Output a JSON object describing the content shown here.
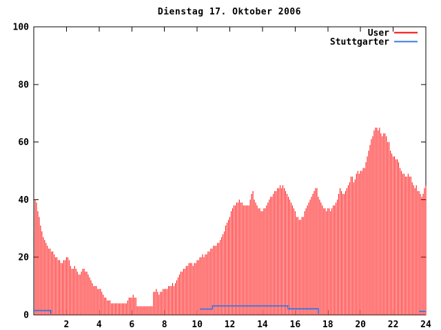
{
  "title": "Dienstag 17. Oktober 2006",
  "legend": {
    "position": "top-right-inside",
    "entries": [
      {
        "label": "User",
        "color": "#ff0000"
      },
      {
        "label": "Stuttgarter",
        "color": "#3a76e0"
      }
    ]
  },
  "axes": {
    "x_tick_labels": [
      2,
      4,
      6,
      8,
      10,
      12,
      14,
      16,
      18,
      20,
      22,
      24
    ],
    "y_tick_labels": [
      0,
      20,
      40,
      60,
      80,
      100
    ]
  },
  "chart_data": {
    "type": "bar",
    "title": "Dienstag 17. Oktober 2006",
    "xlabel": "",
    "ylabel": "",
    "xlim": [
      0,
      24
    ],
    "ylim": [
      0,
      100
    ],
    "x_ticks": [
      2,
      4,
      6,
      8,
      10,
      12,
      14,
      16,
      18,
      20,
      22,
      24
    ],
    "y_ticks": [
      0,
      20,
      40,
      60,
      80,
      100
    ],
    "grid": false,
    "legend_position": "top-right-inside",
    "series": [
      {
        "name": "User",
        "style": "impulses",
        "color": "#ff0000",
        "interval_minutes": 5,
        "values": [
          40,
          39,
          36,
          34,
          31,
          29,
          27,
          26,
          25,
          24,
          23,
          23,
          22,
          22,
          21,
          20,
          20,
          19,
          19,
          18,
          18,
          19,
          19,
          20,
          20,
          19,
          17,
          16,
          16,
          17,
          16,
          15,
          14,
          14,
          15,
          16,
          16,
          15,
          15,
          14,
          13,
          12,
          11,
          10,
          10,
          10,
          9,
          9,
          9,
          8,
          7,
          6,
          6,
          5,
          5,
          5,
          4,
          4,
          4,
          4,
          4,
          4,
          4,
          4,
          4,
          4,
          4,
          4,
          5,
          6,
          6,
          6,
          7,
          6,
          6,
          3,
          3,
          3,
          3,
          3,
          3,
          3,
          3,
          3,
          3,
          3,
          3,
          8,
          8,
          9,
          8,
          7,
          8,
          8,
          9,
          9,
          9,
          9,
          10,
          10,
          10,
          11,
          10,
          11,
          12,
          13,
          14,
          15,
          15,
          16,
          16,
          17,
          17,
          18,
          18,
          18,
          17,
          18,
          18,
          19,
          19,
          20,
          20,
          21,
          20,
          21,
          21,
          22,
          22,
          23,
          23,
          24,
          24,
          24,
          25,
          25,
          26,
          27,
          28,
          29,
          31,
          32,
          33,
          34,
          36,
          37,
          38,
          38,
          39,
          39,
          40,
          39,
          39,
          38,
          38,
          38,
          38,
          38,
          40,
          42,
          43,
          40,
          39,
          38,
          37,
          37,
          36,
          36,
          37,
          37,
          38,
          39,
          40,
          41,
          41,
          42,
          43,
          43,
          44,
          44,
          45,
          44,
          45,
          44,
          43,
          42,
          41,
          40,
          39,
          38,
          37,
          36,
          34,
          34,
          33,
          33,
          34,
          34,
          36,
          37,
          38,
          39,
          40,
          41,
          42,
          43,
          44,
          44,
          41,
          40,
          39,
          38,
          37,
          37,
          36,
          37,
          37,
          36,
          37,
          38,
          38,
          39,
          40,
          42,
          44,
          43,
          42,
          42,
          43,
          44,
          45,
          46,
          48,
          48,
          46,
          47,
          49,
          50,
          49,
          50,
          50,
          51,
          51,
          53,
          55,
          57,
          59,
          61,
          62,
          64,
          65,
          65,
          64,
          65,
          63,
          62,
          63,
          63,
          62,
          60,
          60,
          57,
          56,
          55,
          55,
          54,
          54,
          53,
          51,
          50,
          49,
          49,
          48,
          48,
          49,
          48,
          48,
          46,
          45,
          44,
          45,
          43,
          43,
          42,
          41,
          42,
          44,
          45
        ]
      },
      {
        "name": "Stuttgarter",
        "style": "step-line",
        "color": "#3a76e0",
        "segments": [
          [
            [
              0.0,
              1.5
            ],
            [
              1.04,
              1.5
            ],
            [
              1.04,
              0.4
            ]
          ],
          [
            [
              10.17,
              2.0
            ],
            [
              10.92,
              2.0
            ],
            [
              10.92,
              3.1
            ],
            [
              15.58,
              3.1
            ],
            [
              15.58,
              2.1
            ],
            [
              17.42,
              2.1
            ],
            [
              17.42,
              0.4
            ]
          ],
          [
            [
              23.58,
              1.2
            ],
            [
              24.0,
              1.2
            ]
          ]
        ]
      }
    ]
  }
}
